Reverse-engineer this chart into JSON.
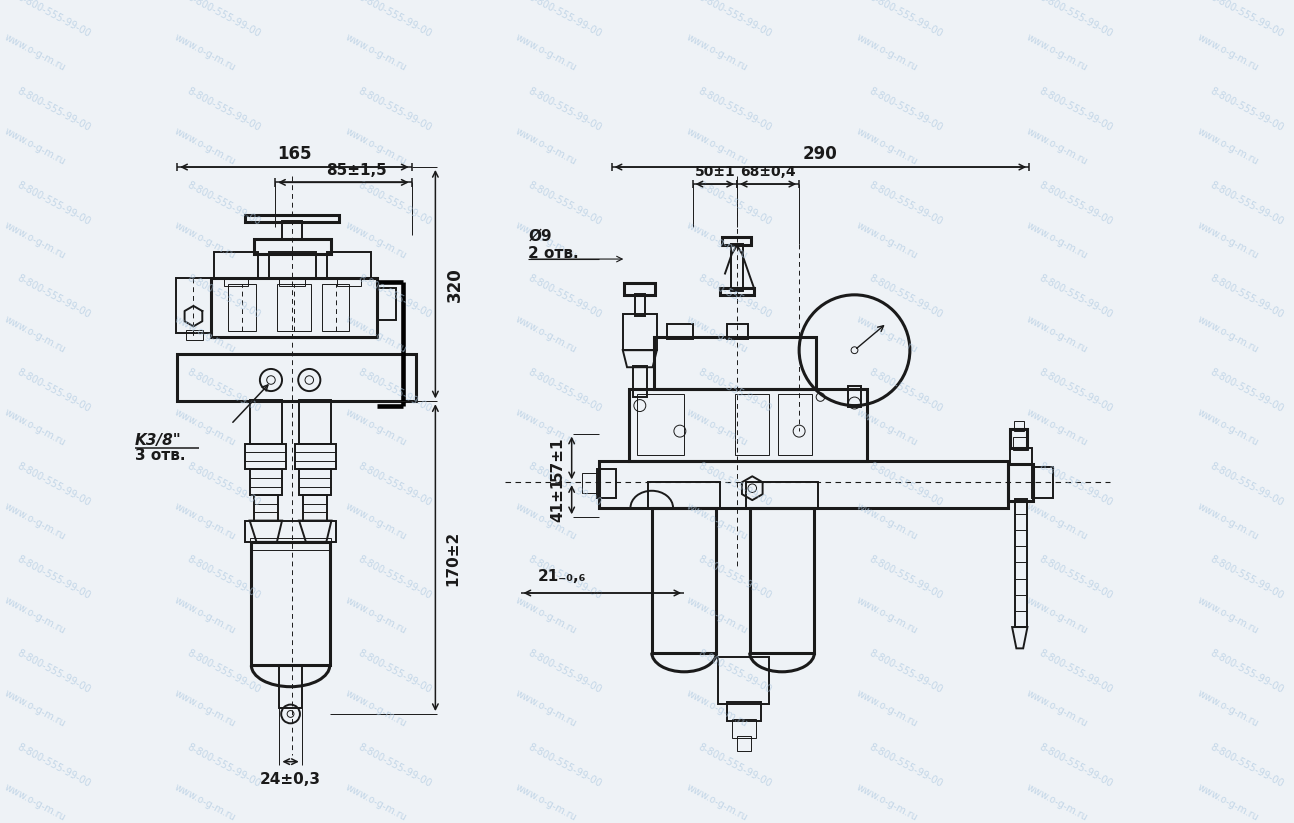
{
  "bg_color": "#eef2f6",
  "line_color": "#1a1a1a",
  "wm_color": "#adc8e0",
  "wm1": "www.o-g-m.ru",
  "wm2": "8-800-555-99-00",
  "dim_165": "165",
  "dim_85": "85±1,5",
  "dim_320": "320",
  "dim_170": "170±2",
  "dim_24": "24±0,3",
  "dim_K38": "K3/8\"",
  "dim_3otv": "3 отв.",
  "dim_290": "290",
  "dim_50": "50±1",
  "dim_68": "68±0,4",
  "dim_d9": "Ø9",
  "dim_2otv": "2 отв.",
  "dim_57": "57±1",
  "dim_41": "41±1",
  "lw": 1.4,
  "lw2": 2.2,
  "lw1": 0.7,
  "lw_dash": 0.8
}
